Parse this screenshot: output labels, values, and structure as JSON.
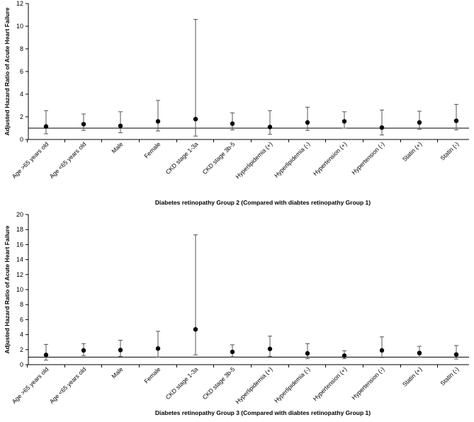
{
  "chart_data": [
    {
      "type": "scatter",
      "subtype": "forest-plot",
      "xlabel": "Diabetes retinopathy Group 2 (Compared with diabtes retinopathy Group 1)",
      "ylabel": "Adjusted Hazard Ratio of Acute Heart Failure",
      "ylim": [
        0,
        12
      ],
      "yticks": [
        "0",
        "2",
        "4",
        "6",
        "8",
        "10",
        "12"
      ],
      "reference_line": 1,
      "grid": false,
      "categories": [
        "Age >65 years old",
        "Age <65 years old",
        "Male",
        "Female",
        "CKD stage 1-3a",
        "CKD stage 3b-5",
        "Hyperlipidemia (+)",
        "Hyperlipidemia (-)",
        "Hypertension (+)",
        "Hypertension (-)",
        "Statin (+)",
        "Statin (-)"
      ],
      "values": [
        1.15,
        1.35,
        1.2,
        1.6,
        1.8,
        1.4,
        1.1,
        1.5,
        1.6,
        1.05,
        1.5,
        1.65
      ],
      "lower": [
        0.5,
        0.8,
        0.6,
        0.75,
        0.3,
        0.85,
        0.45,
        0.8,
        1.0,
        0.4,
        0.9,
        0.85
      ],
      "upper": [
        2.55,
        2.25,
        2.45,
        3.45,
        10.6,
        2.35,
        2.55,
        2.85,
        2.45,
        2.6,
        2.5,
        3.1
      ]
    },
    {
      "type": "scatter",
      "subtype": "forest-plot",
      "xlabel": "Diabetes retinopathy Group 3 (Compared with diabtes retinopathy Group 1)",
      "ylabel": "Adjusted Hazard Ratio of Acute Heart Failure",
      "ylim": [
        0,
        20
      ],
      "yticks": [
        "0",
        "2",
        "4",
        "6",
        "8",
        "10",
        "12",
        "14",
        "16",
        "18",
        "20"
      ],
      "reference_line": 1,
      "grid": false,
      "categories": [
        "Age >65 years old",
        "Age <65 years old",
        "Male",
        "Female",
        "CKD stage 1-3a",
        "CKD stage 3b-5",
        "Hyperlipidemia (+)",
        "Hyperlipidemia (-)",
        "Hypertension (+)",
        "Hypertension (-)",
        "Statin (+)",
        "Statin (-)"
      ],
      "values": [
        1.3,
        1.9,
        1.95,
        2.15,
        4.7,
        1.7,
        2.1,
        1.5,
        1.2,
        1.9,
        1.55,
        1.35
      ],
      "lower": [
        0.6,
        1.2,
        1.1,
        1.0,
        1.3,
        1.05,
        1.1,
        0.8,
        0.8,
        0.95,
        1.0,
        0.75
      ],
      "upper": [
        2.7,
        2.8,
        3.25,
        4.45,
        17.3,
        2.65,
        3.8,
        2.8,
        1.85,
        3.7,
        2.45,
        2.55
      ]
    }
  ]
}
